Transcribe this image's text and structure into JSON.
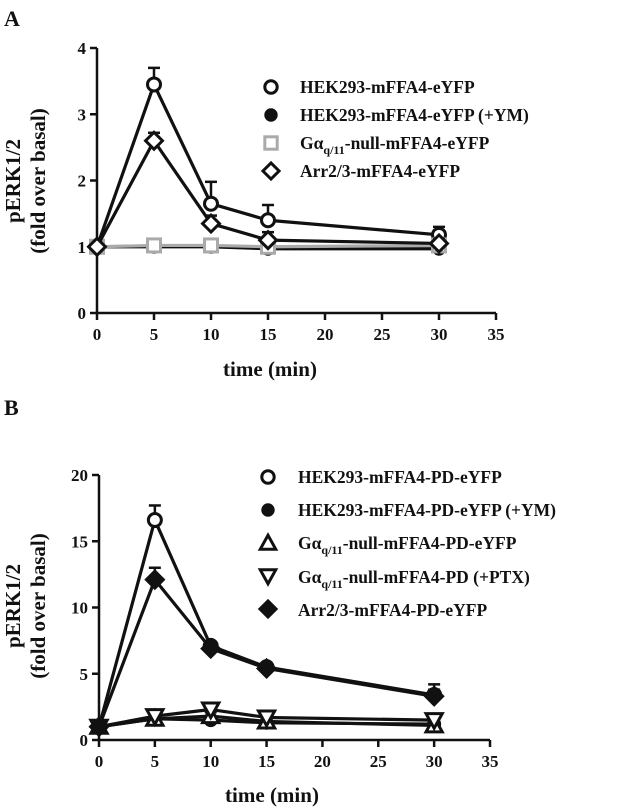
{
  "panels": [
    {
      "id": "A",
      "letter": "A",
      "ylabel_line1": "pERK1/2",
      "ylabel_line2": "(fold over basal)",
      "xlabel": "time (min)",
      "legend": [
        {
          "prefix": "HEK293-mFFA4-eYFP",
          "sub": "",
          "suffix": "",
          "marker": "circle-open",
          "color": "#111111"
        },
        {
          "prefix": "HEK293-mFFA4-eYFP (+YM)",
          "sub": "",
          "suffix": "",
          "marker": "circle-filled",
          "color": "#111111"
        },
        {
          "prefix": "Gα",
          "sub": "q/11",
          "suffix": "-null-mFFA4-eYFP",
          "marker": "square-open",
          "color": "#aaaaaa"
        },
        {
          "prefix": "Arr2/3-mFFA4-eYFP",
          "sub": "",
          "suffix": "",
          "marker": "diamond-open",
          "color": "#111111"
        }
      ]
    },
    {
      "id": "B",
      "letter": "B",
      "ylabel_line1": "pERK1/2",
      "ylabel_line2": "(fold over basal)",
      "xlabel": "time (min)",
      "legend": [
        {
          "prefix": "HEK293-mFFA4-PD-eYFP",
          "sub": "",
          "suffix": "",
          "marker": "circle-open",
          "color": "#111111"
        },
        {
          "prefix": "HEK293-mFFA4-PD-eYFP (+YM)",
          "sub": "",
          "suffix": "",
          "marker": "circle-filled",
          "color": "#111111"
        },
        {
          "prefix": "Gα",
          "sub": "q/11",
          "suffix": "-null-mFFA4-PD-eYFP",
          "marker": "triangle-up-open",
          "color": "#111111"
        },
        {
          "prefix": "Gα",
          "sub": "q/11",
          "suffix": "-null-mFFA4-PD (+PTX)",
          "marker": "triangle-down-open",
          "color": "#111111"
        },
        {
          "prefix": "Arr2/3-mFFA4-PD-eYFP",
          "sub": "",
          "suffix": "",
          "marker": "diamond-filled",
          "color": "#111111"
        }
      ]
    }
  ],
  "chart_data": [
    {
      "type": "line",
      "panel": "A",
      "xlabel": "time (min)",
      "ylabel": "pERK1/2 (fold over basal)",
      "xlim": [
        0,
        35
      ],
      "ylim": [
        0,
        4
      ],
      "xticks": [
        0,
        5,
        10,
        15,
        20,
        25,
        30,
        35
      ],
      "yticks": [
        0,
        1,
        2,
        3,
        4
      ],
      "legend_position": "top-right",
      "series": [
        {
          "name": "HEK293-mFFA4-eYFP",
          "marker": "circle-open",
          "color": "#111111",
          "x": [
            0,
            5,
            10,
            15,
            30
          ],
          "y": [
            1.0,
            3.45,
            1.65,
            1.4,
            1.18
          ],
          "error": [
            0.03,
            0.25,
            0.33,
            0.23,
            0.12
          ]
        },
        {
          "name": "HEK293-mFFA4-eYFP (+YM)",
          "marker": "circle-filled",
          "color": "#111111",
          "x": [
            0,
            5,
            10,
            15,
            30
          ],
          "y": [
            1.0,
            1.0,
            1.0,
            0.97,
            0.97
          ],
          "error": [
            0.02,
            0.03,
            0.04,
            0.03,
            0.03
          ]
        },
        {
          "name": "Gαq/11-null-mFFA4-eYFP",
          "marker": "square-open",
          "color": "#aaaaaa",
          "x": [
            0,
            5,
            10,
            15,
            30
          ],
          "y": [
            1.0,
            1.02,
            1.02,
            1.0,
            1.02
          ],
          "error": [
            0.02,
            0.03,
            0.03,
            0.03,
            0.03
          ]
        },
        {
          "name": "Arr2/3-mFFA4-eYFP",
          "marker": "diamond-open",
          "color": "#111111",
          "x": [
            0,
            5,
            10,
            15,
            30
          ],
          "y": [
            1.0,
            2.6,
            1.35,
            1.1,
            1.05
          ],
          "error": [
            0.03,
            0.12,
            0.12,
            0.12,
            0.06
          ]
        }
      ]
    },
    {
      "type": "line",
      "panel": "B",
      "xlabel": "time (min)",
      "ylabel": "pERK1/2 (fold over basal)",
      "xlim": [
        0,
        35
      ],
      "ylim": [
        0,
        20
      ],
      "xticks": [
        0,
        5,
        10,
        15,
        20,
        25,
        30,
        35
      ],
      "yticks": [
        0,
        5,
        10,
        15,
        20
      ],
      "legend_position": "top-right",
      "series": [
        {
          "name": "HEK293-mFFA4-PD-eYFP",
          "marker": "circle-open",
          "color": "#111111",
          "x": [
            0,
            5,
            10,
            15,
            30
          ],
          "y": [
            1.0,
            16.6,
            7.1,
            5.5,
            3.4
          ],
          "error": [
            0.1,
            1.1,
            0.3,
            0.3,
            0.8
          ]
        },
        {
          "name": "HEK293-mFFA4-PD-eYFP (+YM)",
          "marker": "circle-filled",
          "color": "#111111",
          "x": [
            0,
            5,
            10,
            15,
            30
          ],
          "y": [
            1.0,
            1.6,
            1.5,
            1.3,
            1.2
          ],
          "error": [
            0.1,
            0.2,
            0.2,
            0.2,
            0.2
          ]
        },
        {
          "name": "Gαq/11-null-mFFA4-PD-eYFP",
          "marker": "triangle-up-open",
          "color": "#111111",
          "x": [
            0,
            5,
            10,
            15,
            30
          ],
          "y": [
            1.0,
            1.6,
            1.8,
            1.4,
            1.1
          ],
          "error": [
            0.1,
            0.2,
            0.3,
            0.2,
            0.2
          ]
        },
        {
          "name": "Gαq/11-null-mFFA4-PD (+PTX)",
          "marker": "triangle-down-open",
          "color": "#111111",
          "x": [
            0,
            5,
            10,
            15,
            30
          ],
          "y": [
            1.0,
            1.8,
            2.3,
            1.7,
            1.5
          ],
          "error": [
            0.1,
            0.3,
            0.3,
            0.2,
            0.2
          ]
        },
        {
          "name": "Arr2/3-mFFA4-PD-eYFP",
          "marker": "diamond-filled",
          "color": "#111111",
          "x": [
            0,
            5,
            10,
            15,
            30
          ],
          "y": [
            1.0,
            12.1,
            6.9,
            5.4,
            3.3
          ],
          "error": [
            0.1,
            0.9,
            0.3,
            0.3,
            0.5
          ]
        }
      ]
    }
  ]
}
